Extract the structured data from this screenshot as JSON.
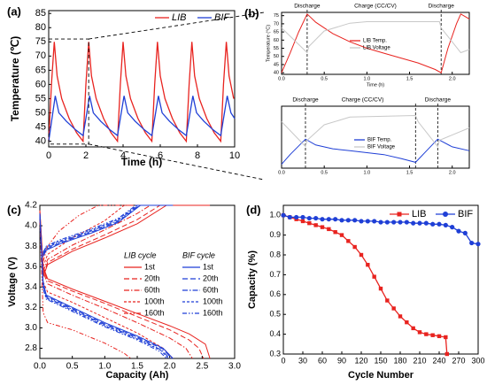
{
  "chart_data": [
    {
      "type": "line",
      "label": "(a)",
      "xlabel": "Time (h)",
      "ylabel": "Temperature (℃)",
      "xlim": [
        0,
        10
      ],
      "ylim": [
        38,
        86
      ],
      "xticks": [
        0,
        2,
        4,
        6,
        8,
        10
      ],
      "yticks": [
        40,
        45,
        50,
        55,
        60,
        65,
        70,
        75,
        80,
        85
      ],
      "series": [
        {
          "name": "LIB",
          "color": "#e8231f",
          "x": [
            0,
            0.15,
            0.3,
            0.45,
            0.7,
            1.1,
            1.5,
            1.85,
            2.0,
            2.15,
            2.3,
            2.55,
            2.95,
            3.35,
            3.7,
            3.85,
            4.0,
            4.15,
            4.4,
            4.8,
            5.2,
            5.55,
            5.7,
            5.85,
            6.0,
            6.25,
            6.65,
            7.05,
            7.4,
            7.55,
            7.7,
            7.85,
            8.1,
            8.5,
            8.9,
            9.25,
            9.4,
            9.55,
            9.7,
            9.95
          ],
          "values": [
            40,
            60,
            75,
            63,
            55,
            48,
            43,
            40,
            60,
            75,
            63,
            55,
            48,
            43,
            40,
            60,
            75,
            63,
            55,
            48,
            43,
            40,
            60,
            75,
            63,
            55,
            48,
            43,
            40,
            60,
            75,
            63,
            55,
            48,
            43,
            40,
            60,
            75,
            63,
            55
          ]
        },
        {
          "name": "BIF",
          "color": "#1f3fd6",
          "x": [
            0,
            0.35,
            0.55,
            0.95,
            1.45,
            1.85,
            2.2,
            2.4,
            2.8,
            3.3,
            3.7,
            4.05,
            4.25,
            4.65,
            5.15,
            5.55,
            5.9,
            6.1,
            6.5,
            7.0,
            7.4,
            7.75,
            7.95,
            8.35,
            8.85,
            9.25,
            9.6,
            9.8,
            10
          ],
          "values": [
            40,
            56,
            50,
            47,
            44,
            42,
            56,
            50,
            47,
            44,
            42,
            56,
            50,
            47,
            44,
            42,
            56,
            50,
            47,
            44,
            42,
            56,
            50,
            47,
            44,
            42,
            56,
            50,
            48
          ]
        }
      ]
    },
    {
      "type": "line",
      "label": "(b)",
      "xlabel": "Time (h)",
      "ylabel": "Temperature (°C)",
      "annotations": [
        "Discharge",
        "Charge (CC/CV)",
        "Discharge"
      ],
      "xlim": [
        0,
        2.2
      ],
      "ylim": [
        39,
        77
      ],
      "y2lim": [
        2.5,
        4.5
      ],
      "xticks": [
        {
          "value": 0,
          "label": "0.0"
        },
        0.5,
        {
          "value": 1,
          "label": "1.0"
        },
        1.5,
        {
          "value": 2,
          "label": "2.0"
        }
      ],
      "yticks": [
        40,
        45,
        50,
        55,
        60,
        65,
        70,
        75
      ],
      "series": [
        {
          "name": "LIB Temp.",
          "color": "#e8231f",
          "x": [
            0,
            0.1,
            0.2,
            0.3,
            0.4,
            0.6,
            0.8,
            1.0,
            1.2,
            1.4,
            1.6,
            1.8,
            1.87,
            1.95,
            2.05,
            2.1,
            2.2
          ],
          "values": [
            40,
            52,
            65,
            76,
            71,
            64,
            59,
            55,
            52,
            49,
            46,
            42,
            40,
            55,
            70,
            76,
            73
          ]
        },
        {
          "name": "LIB Voltage",
          "color": "#c8c8c8",
          "axis": "y2",
          "x": [
            0,
            0.3,
            0.32,
            0.5,
            0.8,
            1.0,
            1.85,
            1.87,
            2.1,
            2.2
          ],
          "values": [
            4.0,
            3.2,
            3.4,
            3.9,
            4.15,
            4.2,
            4.2,
            4.0,
            3.2,
            3.3
          ]
        }
      ]
    },
    {
      "type": "line",
      "annotations": [
        "Discharge",
        "Charge (CC/CV)",
        "Discharge"
      ],
      "xlim": [
        0,
        2.2
      ],
      "ylim": [
        38,
        70
      ],
      "y2lim": [
        2.5,
        4.5
      ],
      "xticks": [
        {
          "value": 0,
          "label": "0.0"
        },
        0.5,
        {
          "value": 1,
          "label": "1.0"
        },
        1.5,
        {
          "value": 2,
          "label": "2.0"
        }
      ],
      "series": [
        {
          "name": "BIF  Temp.",
          "color": "#1f3fd6",
          "x": [
            0,
            0.1,
            0.28,
            0.4,
            0.6,
            0.8,
            1.0,
            1.2,
            1.4,
            1.57,
            1.7,
            1.83,
            2.0,
            2.2
          ],
          "values": [
            40,
            45,
            53,
            50,
            48,
            47,
            46,
            45,
            43,
            41,
            47,
            53,
            49,
            47
          ]
        },
        {
          "name": "BIF  Voltage",
          "color": "#c8c8c8",
          "axis": "y2",
          "x": [
            0,
            0.28,
            0.3,
            0.5,
            0.8,
            1.57,
            1.6,
            1.83,
            1.85,
            2.2
          ],
          "values": [
            4.0,
            3.2,
            3.4,
            3.9,
            4.15,
            4.2,
            4.0,
            3.2,
            3.4,
            3.8
          ]
        }
      ]
    },
    {
      "type": "line",
      "label": "(c)",
      "xlabel": "Capacity (Ah)",
      "ylabel": "Voltage (V)",
      "legend_titles": [
        "LIB cycle",
        "BIF cycle"
      ],
      "xlim": [
        0,
        3
      ],
      "ylim": [
        2.7,
        4.2
      ],
      "xticks": [
        {
          "value": 0,
          "label": "0.0"
        },
        0.5,
        {
          "value": 1,
          "label": "1.0"
        },
        1.5,
        {
          "value": 2,
          "label": "2.0"
        },
        2.5,
        {
          "value": 3,
          "label": "3.0"
        }
      ],
      "yticks": [
        2.8,
        {
          "value": 3,
          "label": "3.0"
        },
        3.2,
        3.4,
        3.6,
        3.8,
        {
          "value": 4,
          "label": "4.0"
        },
        4.2
      ],
      "series": [
        {
          "name": "1st",
          "color": "#e8231f",
          "dash": "",
          "x": [
            0,
            0.05,
            0.12,
            0.5,
            1.0,
            1.5,
            2.0,
            2.3,
            2.55,
            2.62,
            null,
            0.05,
            0.12,
            0.5,
            1.0,
            1.5,
            1.95,
            2.62
          ],
          "values": [
            4.15,
            3.6,
            3.48,
            3.38,
            3.26,
            3.14,
            3.02,
            2.94,
            2.84,
            2.7,
            null,
            3.5,
            3.62,
            3.75,
            3.88,
            4.02,
            4.2,
            4.2
          ]
        },
        {
          "name": "20th",
          "color": "#e8231f",
          "dash": "6,3",
          "x": [
            0,
            0.05,
            0.12,
            0.5,
            1.0,
            1.5,
            2.0,
            2.3,
            2.45,
            2.52,
            null,
            0.05,
            0.12,
            0.5,
            1.0,
            1.5,
            1.85,
            2.52
          ],
          "values": [
            4.15,
            3.58,
            3.46,
            3.36,
            3.24,
            3.11,
            2.98,
            2.88,
            2.8,
            2.7,
            null,
            3.52,
            3.64,
            3.77,
            3.91,
            4.06,
            4.2,
            4.2
          ]
        },
        {
          "name": "60th",
          "color": "#e8231f",
          "dash": "6,2,1.5,2",
          "x": [
            0,
            0.05,
            0.12,
            0.5,
            1.0,
            1.5,
            2.0,
            2.25,
            2.35,
            null,
            0.05,
            0.12,
            0.5,
            1.0,
            1.5,
            1.7,
            2.35
          ],
          "values": [
            4.12,
            3.55,
            3.43,
            3.32,
            3.19,
            3.05,
            2.9,
            2.8,
            2.7,
            null,
            3.55,
            3.67,
            3.81,
            3.96,
            4.12,
            4.2,
            4.2
          ]
        },
        {
          "name": "100th",
          "color": "#e8231f",
          "dash": "3,2",
          "x": [
            0,
            0.05,
            0.12,
            0.5,
            1.0,
            1.5,
            1.9,
            2.05,
            null,
            0.05,
            0.12,
            0.5,
            1.0,
            1.3,
            2.05
          ],
          "values": [
            4.1,
            3.45,
            3.35,
            3.25,
            3.1,
            2.95,
            2.8,
            2.7,
            null,
            3.6,
            3.72,
            3.88,
            4.05,
            4.2,
            4.2
          ]
        },
        {
          "name": "160th",
          "color": "#e8231f",
          "dash": "5,2,1.5,2,1.5,2",
          "x": [
            0,
            0.05,
            0.12,
            0.5,
            1.0,
            1.3,
            1.4,
            null,
            0.05,
            0.12,
            0.3,
            0.6,
            0.9,
            1.4
          ],
          "values": [
            4.05,
            3.15,
            3.05,
            2.98,
            2.85,
            2.75,
            2.7,
            null,
            3.65,
            3.8,
            3.95,
            4.1,
            4.2,
            4.2
          ]
        },
        {
          "name": "1st",
          "color": "#1f3fd6",
          "dash": "",
          "x": [
            0,
            0.05,
            0.1,
            0.5,
            1.0,
            1.5,
            1.9,
            2.05,
            null,
            0.05,
            0.1,
            0.3,
            0.8,
            1.2,
            1.55,
            2.05
          ],
          "values": [
            4.12,
            3.45,
            3.32,
            3.2,
            3.05,
            2.92,
            2.8,
            2.7,
            null,
            3.7,
            3.76,
            3.82,
            3.93,
            4.03,
            4.2,
            4.2
          ]
        },
        {
          "name": "20th",
          "color": "#1f3fd6",
          "dash": "6,3",
          "x": [
            0,
            0.05,
            0.1,
            0.5,
            1.0,
            1.5,
            1.9,
            2.03,
            null,
            0.05,
            0.1,
            0.3,
            0.8,
            1.2,
            1.54,
            2.03
          ],
          "values": [
            4.12,
            3.44,
            3.31,
            3.19,
            3.04,
            2.91,
            2.79,
            2.7,
            null,
            3.71,
            3.77,
            3.83,
            3.94,
            4.04,
            4.2,
            4.2
          ]
        },
        {
          "name": "60th",
          "color": "#1f3fd6",
          "dash": "6,2,1.5,2",
          "x": [
            0,
            0.05,
            0.1,
            0.5,
            1.0,
            1.5,
            1.88,
            2.0,
            null,
            0.05,
            0.1,
            0.3,
            0.8,
            1.2,
            1.52,
            2.0
          ],
          "values": [
            4.11,
            3.42,
            3.3,
            3.18,
            3.03,
            2.9,
            2.78,
            2.7,
            null,
            3.72,
            3.78,
            3.84,
            3.95,
            4.05,
            4.2,
            4.2
          ]
        },
        {
          "name": "100th",
          "color": "#1f3fd6",
          "dash": "3,2",
          "x": [
            0,
            0.05,
            0.1,
            0.5,
            1.0,
            1.5,
            1.86,
            1.98,
            null,
            0.05,
            0.1,
            0.3,
            0.8,
            1.2,
            1.5,
            1.98
          ],
          "values": [
            4.1,
            3.4,
            3.29,
            3.17,
            3.02,
            2.89,
            2.78,
            2.7,
            null,
            3.73,
            3.79,
            3.85,
            3.96,
            4.06,
            4.2,
            4.2
          ]
        },
        {
          "name": "160th",
          "color": "#1f3fd6",
          "dash": "5,2,1.5,2,1.5,2",
          "x": [
            0,
            0.05,
            0.1,
            0.5,
            1.0,
            1.5,
            1.84,
            1.95,
            null,
            0.05,
            0.1,
            0.3,
            0.8,
            1.2,
            1.48,
            1.95
          ],
          "values": [
            4.1,
            3.38,
            3.28,
            3.16,
            3.01,
            2.88,
            2.77,
            2.7,
            null,
            3.74,
            3.8,
            3.86,
            3.97,
            4.07,
            4.2,
            4.2
          ]
        }
      ]
    },
    {
      "type": "line",
      "label": "(d)",
      "xlabel": "Cycle Number",
      "ylabel": "Capacity (%)",
      "xlim": [
        0,
        300
      ],
      "ylim": [
        0.3,
        1.05
      ],
      "xticks": [
        0,
        30,
        60,
        90,
        120,
        150,
        180,
        210,
        240,
        270,
        300
      ],
      "yticks": [
        0.3,
        0.4,
        0.5,
        0.6,
        0.7,
        0.8,
        0.9,
        {
          "value": 1,
          "label": "1.0"
        }
      ],
      "series": [
        {
          "name": "LIB",
          "color": "#e8231f",
          "marker": "square",
          "x": [
            0,
            10,
            20,
            30,
            40,
            50,
            60,
            70,
            80,
            90,
            100,
            110,
            120,
            130,
            140,
            150,
            160,
            170,
            180,
            190,
            200,
            210,
            220,
            230,
            240,
            250,
            252
          ],
          "values": [
            1.0,
            0.99,
            0.98,
            0.97,
            0.96,
            0.95,
            0.94,
            0.93,
            0.915,
            0.9,
            0.87,
            0.84,
            0.8,
            0.75,
            0.69,
            0.63,
            0.57,
            0.53,
            0.49,
            0.46,
            0.43,
            0.41,
            0.4,
            0.395,
            0.39,
            0.385,
            0.3
          ]
        },
        {
          "name": "BIF",
          "color": "#1f3fd6",
          "marker": "circle",
          "x": [
            0,
            10,
            20,
            30,
            40,
            50,
            60,
            70,
            80,
            90,
            100,
            110,
            120,
            130,
            140,
            150,
            160,
            170,
            180,
            190,
            200,
            210,
            220,
            230,
            240,
            250,
            260,
            270,
            280,
            290,
            300
          ],
          "values": [
            1.0,
            0.99,
            0.99,
            0.99,
            0.985,
            0.985,
            0.98,
            0.98,
            0.98,
            0.975,
            0.975,
            0.975,
            0.97,
            0.97,
            0.97,
            0.965,
            0.965,
            0.965,
            0.965,
            0.965,
            0.96,
            0.96,
            0.96,
            0.955,
            0.955,
            0.95,
            0.94,
            0.92,
            0.91,
            0.86,
            0.855
          ]
        }
      ]
    }
  ]
}
